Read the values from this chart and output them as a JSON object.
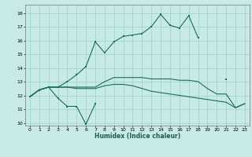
{
  "x_ticks": [
    0,
    1,
    2,
    3,
    4,
    5,
    6,
    7,
    8,
    9,
    10,
    11,
    12,
    13,
    14,
    15,
    16,
    17,
    18,
    19,
    20,
    21,
    22,
    23
  ],
  "xlabel": "Humidex (Indice chaleur)",
  "ylim": [
    9.8,
    18.6
  ],
  "yticks": [
    10,
    11,
    12,
    13,
    14,
    15,
    16,
    17,
    18
  ],
  "xlim": [
    -0.5,
    23.5
  ],
  "bg_color": "#c8eae6",
  "grid_color": "#a0d4ce",
  "line_color": "#1a6b5a",
  "line1_y": [
    11.9,
    12.4,
    12.6,
    11.8,
    11.2,
    11.2,
    9.9,
    11.4,
    null,
    null,
    null,
    null,
    null,
    null,
    null,
    null,
    null,
    null,
    null,
    null,
    null,
    null,
    null,
    null
  ],
  "line2_y": [
    11.9,
    12.4,
    12.6,
    12.6,
    12.6,
    12.5,
    12.5,
    12.5,
    12.7,
    12.8,
    12.8,
    12.7,
    12.5,
    12.3,
    12.2,
    12.1,
    12.0,
    11.9,
    11.8,
    11.7,
    11.6,
    11.5,
    11.1,
    11.4
  ],
  "line3_y": [
    11.9,
    12.4,
    12.6,
    12.6,
    12.6,
    12.6,
    12.6,
    12.6,
    13.0,
    13.3,
    13.3,
    13.3,
    13.3,
    13.2,
    13.2,
    13.2,
    13.1,
    13.1,
    13.0,
    12.5,
    12.1,
    12.1,
    11.1,
    11.4
  ],
  "line4_y": [
    11.9,
    12.4,
    12.6,
    12.6,
    13.0,
    13.5,
    14.1,
    15.9,
    15.1,
    15.9,
    16.3,
    16.4,
    16.5,
    17.0,
    17.9,
    17.1,
    16.9,
    17.8,
    16.2,
    null,
    null,
    13.2,
    null,
    null
  ]
}
